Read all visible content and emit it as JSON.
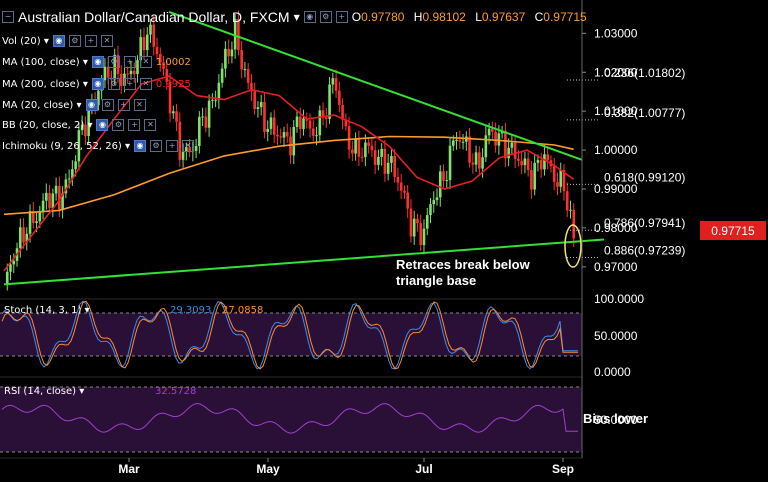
{
  "header": {
    "title": "Australian Dollar/Canadian Dollar, D, FXCM",
    "open_label": "O",
    "open": "0.97780",
    "high_label": "H",
    "high": "0.98102",
    "low_label": "L",
    "low": "0.97637",
    "close_label": "C",
    "close": "0.97715"
  },
  "indicators": [
    {
      "label": "Vol (20)"
    },
    {
      "label": "MA (100, close)",
      "value": "1.0002",
      "value_color": "#ff9b2f"
    },
    {
      "label": "MA (200, close)",
      "value": "0.9925",
      "value_color": "#ff2020"
    },
    {
      "label": "MA (20, close)"
    },
    {
      "label": "BB (20, close, 2)"
    },
    {
      "label": "Ichimoku (9, 26, 52, 26)"
    }
  ],
  "icons": [
    "eye-icon",
    "settings-icon",
    "add-icon",
    "close-icon"
  ],
  "colors": {
    "background": "#000000",
    "bull_candle": "#7ee26b",
    "bear_candle": "#ff3030",
    "ma_orange": "#ff9b2f",
    "ma_red": "#e81f1f",
    "trendline": "#33e033",
    "stoch_k": "#3d8be8",
    "stoch_d": "#ff8a30",
    "rsi": "#a040d0",
    "oscillator_band": "#2a0f36",
    "price_tag": "#e01f1f"
  },
  "current_price": "0.97715",
  "annotations": {
    "triangle": "Retraces break below\ntriangle base",
    "bias": "Bias lower"
  },
  "fib_levels": [
    {
      "label": "0.236(1.01802)",
      "value": 1.01802
    },
    {
      "label": "0.382(1.00777)",
      "value": 1.00777
    },
    {
      "label": "0.618(0.99120)",
      "value": 0.9912
    },
    {
      "label": "0.786(0.97941)",
      "value": 0.97941
    },
    {
      "label": "0.886(0.97239)",
      "value": 0.97239
    }
  ],
  "stoch": {
    "title": "Stoch (14, 3, 1)",
    "k": "29.3093",
    "d": "27.0858",
    "ticks": [
      "100.0000",
      "50.0000",
      "0.0000"
    ]
  },
  "rsi": {
    "title": "RSI (14, close)",
    "value": "32.5728",
    "ticks": [
      "50.0000"
    ]
  },
  "x_axis": [
    "Mar",
    "May",
    "Jul",
    "Sep"
  ],
  "chart_data": {
    "type": "candlestick",
    "title": "Australian Dollar/Canadian Dollar, D, FXCM",
    "y_ticks": [
      1.03,
      1.02,
      1.01,
      1.0,
      0.99,
      0.98,
      0.97
    ],
    "y_tick_labels": [
      "1.03000",
      "1.02000",
      "1.01000",
      "1.00000",
      "0.99000",
      "0.98000",
      "0.97000"
    ],
    "ylim": [
      0.9625,
      1.036
    ],
    "x_ticks": [
      "Mar",
      "May",
      "Jul",
      "Sep"
    ],
    "price_path": [
      {
        "t": 0,
        "v": 0.9655
      },
      {
        "t": 4,
        "v": 0.974
      },
      {
        "t": 8,
        "v": 0.98
      },
      {
        "t": 12,
        "v": 0.983
      },
      {
        "t": 16,
        "v": 0.9885
      },
      {
        "t": 20,
        "v": 0.9875
      },
      {
        "t": 24,
        "v": 0.993
      },
      {
        "t": 28,
        "v": 1.005
      },
      {
        "t": 32,
        "v": 1.011
      },
      {
        "t": 36,
        "v": 1.019
      },
      {
        "t": 40,
        "v": 1.021
      },
      {
        "t": 44,
        "v": 1.018
      },
      {
        "t": 48,
        "v": 1.022
      },
      {
        "t": 52,
        "v": 1.031
      },
      {
        "t": 56,
        "v": 1.025
      },
      {
        "t": 60,
        "v": 1.014
      },
      {
        "t": 64,
        "v": 1.0
      },
      {
        "t": 68,
        "v": 0.999
      },
      {
        "t": 72,
        "v": 1.008
      },
      {
        "t": 76,
        "v": 1.012
      },
      {
        "t": 80,
        "v": 1.023
      },
      {
        "t": 84,
        "v": 1.03
      },
      {
        "t": 88,
        "v": 1.018
      },
      {
        "t": 92,
        "v": 1.011
      },
      {
        "t": 96,
        "v": 1.006
      },
      {
        "t": 100,
        "v": 1.004
      },
      {
        "t": 104,
        "v": 1.002
      },
      {
        "t": 108,
        "v": 1.009
      },
      {
        "t": 112,
        "v": 1.004
      },
      {
        "t": 116,
        "v": 1.0085
      },
      {
        "t": 120,
        "v": 1.019
      },
      {
        "t": 124,
        "v": 1.004
      },
      {
        "t": 128,
        "v": 0.999
      },
      {
        "t": 132,
        "v": 1.001
      },
      {
        "t": 136,
        "v": 0.9975
      },
      {
        "t": 140,
        "v": 0.997
      },
      {
        "t": 144,
        "v": 0.991
      },
      {
        "t": 148,
        "v": 0.981
      },
      {
        "t": 152,
        "v": 0.978
      },
      {
        "t": 156,
        "v": 0.988
      },
      {
        "t": 160,
        "v": 0.993
      },
      {
        "t": 164,
        "v": 1.004
      },
      {
        "t": 168,
        "v": 1.001
      },
      {
        "t": 172,
        "v": 0.995
      },
      {
        "t": 176,
        "v": 1.005
      },
      {
        "t": 180,
        "v": 1.003
      },
      {
        "t": 184,
        "v": 1.0
      },
      {
        "t": 188,
        "v": 0.997
      },
      {
        "t": 192,
        "v": 0.993
      },
      {
        "t": 196,
        "v": 0.999
      },
      {
        "t": 200,
        "v": 0.993
      },
      {
        "t": 204,
        "v": 0.99
      },
      {
        "t": 207,
        "v": 0.977
      }
    ],
    "ma_orange": [
      {
        "t": 0,
        "v": 0.9835
      },
      {
        "t": 20,
        "v": 0.9845
      },
      {
        "t": 40,
        "v": 0.9885
      },
      {
        "t": 60,
        "v": 0.994
      },
      {
        "t": 80,
        "v": 0.9985
      },
      {
        "t": 100,
        "v": 1.001
      },
      {
        "t": 120,
        "v": 1.0025
      },
      {
        "t": 140,
        "v": 1.0035
      },
      {
        "t": 160,
        "v": 1.0033
      },
      {
        "t": 180,
        "v": 1.0025
      },
      {
        "t": 200,
        "v": 1.0013
      },
      {
        "t": 207,
        "v": 1.0002
      }
    ],
    "ma_red": [
      {
        "t": 0,
        "v": 0.969
      },
      {
        "t": 10,
        "v": 0.978
      },
      {
        "t": 20,
        "v": 0.987
      },
      {
        "t": 30,
        "v": 0.9985
      },
      {
        "t": 40,
        "v": 1.008
      },
      {
        "t": 50,
        "v": 1.017
      },
      {
        "t": 60,
        "v": 1.019
      },
      {
        "t": 70,
        "v": 1.014
      },
      {
        "t": 80,
        "v": 1.013
      },
      {
        "t": 90,
        "v": 1.0155
      },
      {
        "t": 100,
        "v": 1.014
      },
      {
        "t": 110,
        "v": 1.008
      },
      {
        "t": 120,
        "v": 1.009
      },
      {
        "t": 130,
        "v": 1.006
      },
      {
        "t": 140,
        "v": 1.001
      },
      {
        "t": 150,
        "v": 0.993
      },
      {
        "t": 160,
        "v": 0.99
      },
      {
        "t": 170,
        "v": 0.992
      },
      {
        "t": 180,
        "v": 0.998
      },
      {
        "t": 190,
        "v": 1.0
      },
      {
        "t": 200,
        "v": 0.996
      },
      {
        "t": 207,
        "v": 0.9925
      }
    ],
    "trendline_upper": [
      {
        "t": 60,
        "v": 1.0355
      },
      {
        "t": 210,
        "v": 0.9975
      }
    ],
    "trendline_lower": [
      {
        "t": 0,
        "v": 0.9655
      },
      {
        "t": 210,
        "v": 0.9766
      }
    ]
  }
}
